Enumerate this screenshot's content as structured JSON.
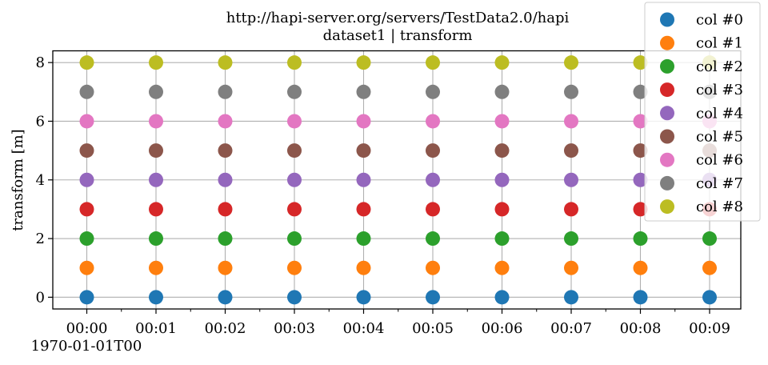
{
  "chart_data": {
    "type": "scatter",
    "title": "http://hapi-server.org/servers/TestData2.0/hapi",
    "subtitle": "dataset1 | transform",
    "ylabel": "transform [m]",
    "xlabel": "",
    "x": [
      "00:00",
      "00:01",
      "00:02",
      "00:03",
      "00:04",
      "00:05",
      "00:06",
      "00:07",
      "00:08",
      "00:09"
    ],
    "x_offset_label": "1970-01-01T00",
    "ylim": [
      -0.4,
      8.4
    ],
    "yticks": [
      0,
      2,
      4,
      6,
      8
    ],
    "grid": true,
    "legend_position": "top-right",
    "series": [
      {
        "name": "col #0",
        "color": "#1f77b4",
        "values": [
          0,
          0,
          0,
          0,
          0,
          0,
          0,
          0,
          0,
          0
        ]
      },
      {
        "name": "col #1",
        "color": "#ff7f0e",
        "values": [
          1,
          1,
          1,
          1,
          1,
          1,
          1,
          1,
          1,
          1
        ]
      },
      {
        "name": "col #2",
        "color": "#2ca02c",
        "values": [
          2,
          2,
          2,
          2,
          2,
          2,
          2,
          2,
          2,
          2
        ]
      },
      {
        "name": "col #3",
        "color": "#d62728",
        "values": [
          3,
          3,
          3,
          3,
          3,
          3,
          3,
          3,
          3,
          3
        ]
      },
      {
        "name": "col #4",
        "color": "#9467bd",
        "values": [
          4,
          4,
          4,
          4,
          4,
          4,
          4,
          4,
          4,
          4
        ]
      },
      {
        "name": "col #5",
        "color": "#8c564b",
        "values": [
          5,
          5,
          5,
          5,
          5,
          5,
          5,
          5,
          5,
          5
        ]
      },
      {
        "name": "col #6",
        "color": "#e377c2",
        "values": [
          6,
          6,
          6,
          6,
          6,
          6,
          6,
          6,
          6,
          6
        ]
      },
      {
        "name": "col #7",
        "color": "#7f7f7f",
        "values": [
          7,
          7,
          7,
          7,
          7,
          7,
          7,
          7,
          7,
          7
        ]
      },
      {
        "name": "col #8",
        "color": "#bcbd22",
        "values": [
          8,
          8,
          8,
          8,
          8,
          8,
          8,
          8,
          8,
          8
        ]
      }
    ]
  }
}
